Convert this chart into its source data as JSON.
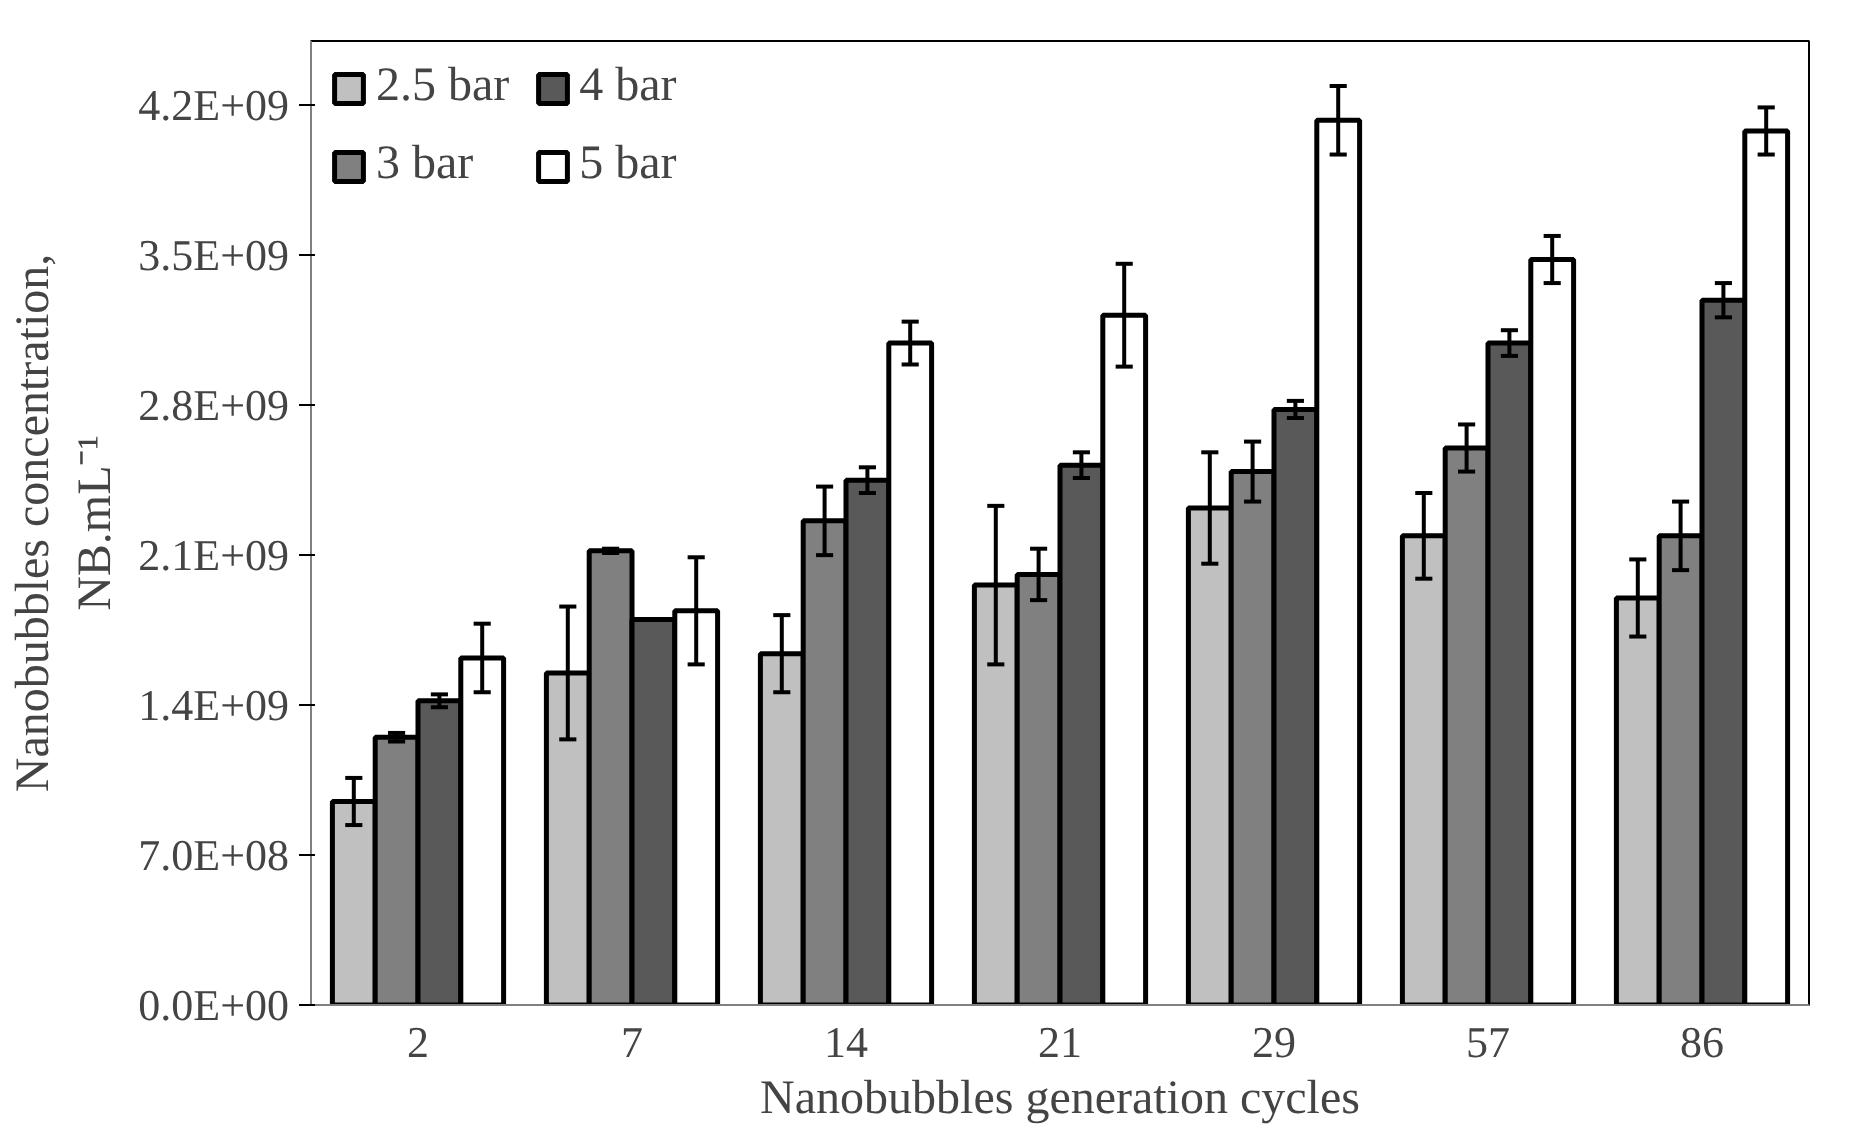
{
  "chart_data": {
    "type": "bar",
    "xlabel": "Nanobubbles generation cycles",
    "ylabel": "Nanobubbles concentration,\nNB.mL⁻¹",
    "categories": [
      "2",
      "7",
      "14",
      "21",
      "29",
      "57",
      "86"
    ],
    "series": [
      {
        "name": "2.5 bar",
        "color": "#c0c0c0",
        "values": [
          950000000.0,
          1550000000.0,
          1640000000.0,
          1960000000.0,
          2320000000.0,
          2190000000.0,
          1900000000.0
        ],
        "errors": [
          110000000.0,
          310000000.0,
          180000000.0,
          370000000.0,
          260000000.0,
          200000000.0,
          180000000.0
        ]
      },
      {
        "name": "3 bar",
        "color": "#808080",
        "values": [
          1250000000.0,
          2120000000.0,
          2260000000.0,
          2010000000.0,
          2490000000.0,
          2600000000.0,
          2190000000.0
        ],
        "errors": [
          20000000.0,
          10000000.0,
          160000000.0,
          120000000.0,
          140000000.0,
          110000000.0,
          160000000.0
        ]
      },
      {
        "name": "4 bar",
        "color": "#595959",
        "values": [
          1420000000.0,
          1800000000.0,
          2450000000.0,
          2520000000.0,
          2780000000.0,
          3090000000.0,
          3290000000.0
        ],
        "errors": [
          30000000.0,
          null,
          60000000.0,
          60000000.0,
          40000000.0,
          60000000.0,
          80000000.0
        ]
      },
      {
        "name": "5 bar",
        "color": "#ffffff",
        "values": [
          1620000000.0,
          1840000000.0,
          3090000000.0,
          3220000000.0,
          4130000000.0,
          3480000000.0,
          4080000000.0
        ],
        "errors": [
          160000000.0,
          250000000.0,
          100000000.0,
          240000000.0,
          160000000.0,
          110000000.0,
          110000000.0
        ]
      }
    ],
    "ylim": [
      0,
      4500000000.0
    ],
    "yticks": [
      {
        "value": 0,
        "label": "0.0E+00"
      },
      {
        "value": 700000000.0,
        "label": "7.0E+08"
      },
      {
        "value": 1400000000.0,
        "label": "1.4E+09"
      },
      {
        "value": 2100000000.0,
        "label": "2.1E+09"
      },
      {
        "value": 2800000000.0,
        "label": "2.8E+09"
      },
      {
        "value": 3500000000.0,
        "label": "3.5E+09"
      },
      {
        "value": 4200000000.0,
        "label": "4.2E+09"
      }
    ],
    "grid": false,
    "legend": "top left"
  }
}
